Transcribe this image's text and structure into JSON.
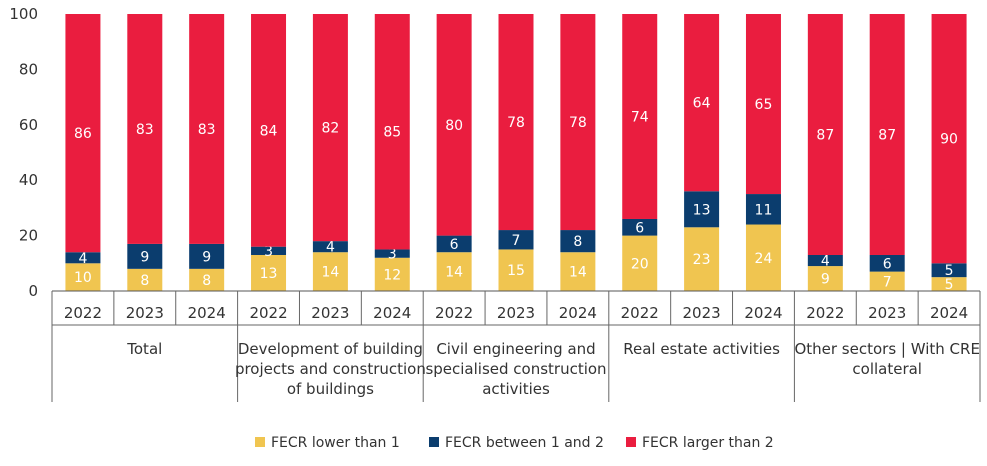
{
  "chart_data": {
    "type": "bar",
    "stacked": true,
    "ylim": [
      0,
      100
    ],
    "yticks": [
      0,
      20,
      40,
      60,
      80,
      100
    ],
    "legend_position": "bottom",
    "grid": false,
    "groups": [
      {
        "label": [
          "Total"
        ],
        "years": [
          "2022",
          "2023",
          "2024"
        ]
      },
      {
        "label": [
          "Development of building",
          "projects and construction",
          "of buildings"
        ],
        "years": [
          "2022",
          "2023",
          "2024"
        ]
      },
      {
        "label": [
          "Civil engineering and",
          "specialised construction",
          "activities"
        ],
        "years": [
          "2022",
          "2023",
          "2024"
        ]
      },
      {
        "label": [
          "Real estate activities"
        ],
        "years": [
          "2022",
          "2023",
          "2024"
        ]
      },
      {
        "label": [
          "Other sectors | With CRE",
          "collateral"
        ],
        "years": [
          "2022",
          "2023",
          "2024"
        ]
      }
    ],
    "series": [
      {
        "name": "FECR lower than 1",
        "color": "#f0c550",
        "label_color": "#ffffff",
        "values": [
          10,
          8,
          8,
          13,
          14,
          12,
          14,
          15,
          14,
          20,
          23,
          24,
          9,
          7,
          5
        ]
      },
      {
        "name": "FECR between 1 and 2",
        "color": "#0b3d6e",
        "label_color": "#ffffff",
        "values": [
          4,
          9,
          9,
          3,
          4,
          3,
          6,
          7,
          8,
          6,
          13,
          11,
          4,
          6,
          5
        ]
      },
      {
        "name": "FECR larger than 2",
        "color": "#ea1d3f",
        "label_color": "#ffffff",
        "values": [
          86,
          83,
          83,
          84,
          82,
          85,
          80,
          78,
          78,
          74,
          64,
          65,
          87,
          87,
          90
        ]
      }
    ]
  }
}
